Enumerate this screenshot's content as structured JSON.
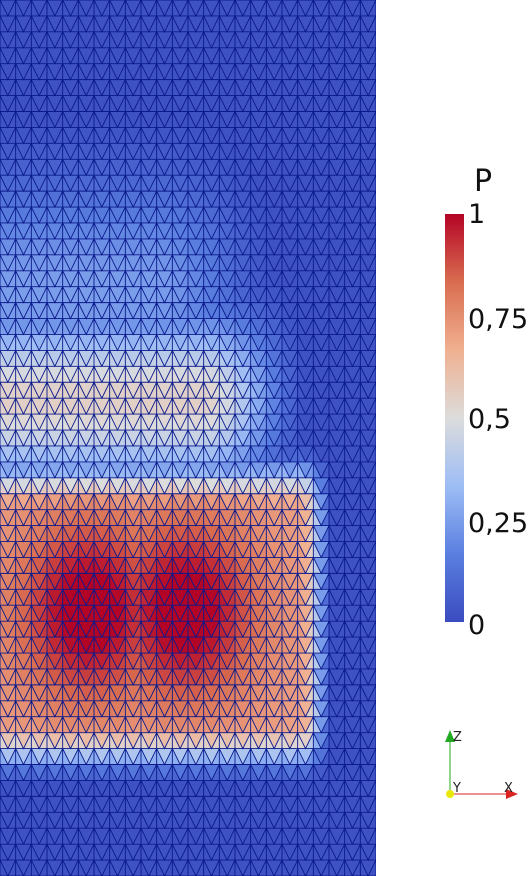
{
  "scalar_bar": {
    "title": "P",
    "ticks": [
      "1",
      "0,75",
      "0,5",
      "0,25",
      "0"
    ],
    "tick_values": [
      1,
      0.75,
      0.5,
      0.25,
      0
    ],
    "colormap": [
      "#3b4cc0",
      "#5a7fe0",
      "#9dbdf5",
      "#dcdcdc",
      "#f0b090",
      "#d96d50",
      "#b40426"
    ],
    "range": [
      0,
      1
    ]
  },
  "orientation_axes": {
    "z_label": "Z",
    "y_label": "Y",
    "x_label": "X",
    "z_color": "#22aa22",
    "x_color": "#dd2222",
    "y_color": "#e8e800"
  },
  "mesh": {
    "edge_color": "#0a1a8c",
    "columns": 24,
    "rows": 55
  }
}
